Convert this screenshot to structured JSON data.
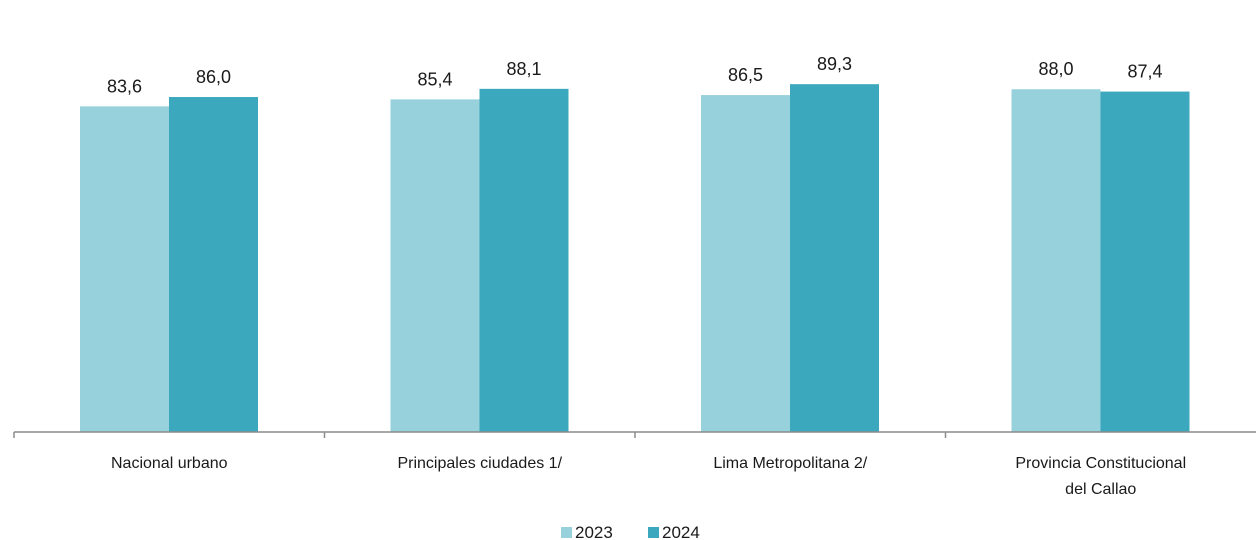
{
  "chart_data": {
    "type": "bar",
    "title": "",
    "xlabel": "",
    "ylabel": "",
    "ylim": [
      0,
      100
    ],
    "grid": false,
    "legend_position": "bottom",
    "categories": [
      [
        "Nacional urbano"
      ],
      [
        "Principales ciudades 1/"
      ],
      [
        "Lima Metropolitana 2/"
      ],
      [
        "Provincia Constitucional",
        "del Callao"
      ]
    ],
    "series": [
      {
        "name": "2023",
        "color": "#97d1dc",
        "values": [
          83.6,
          85.4,
          86.5,
          88.0
        ]
      },
      {
        "name": "2024",
        "color": "#3ba8bd",
        "values": [
          86.0,
          88.1,
          89.3,
          87.4
        ]
      }
    ],
    "decimal_separator": ","
  }
}
